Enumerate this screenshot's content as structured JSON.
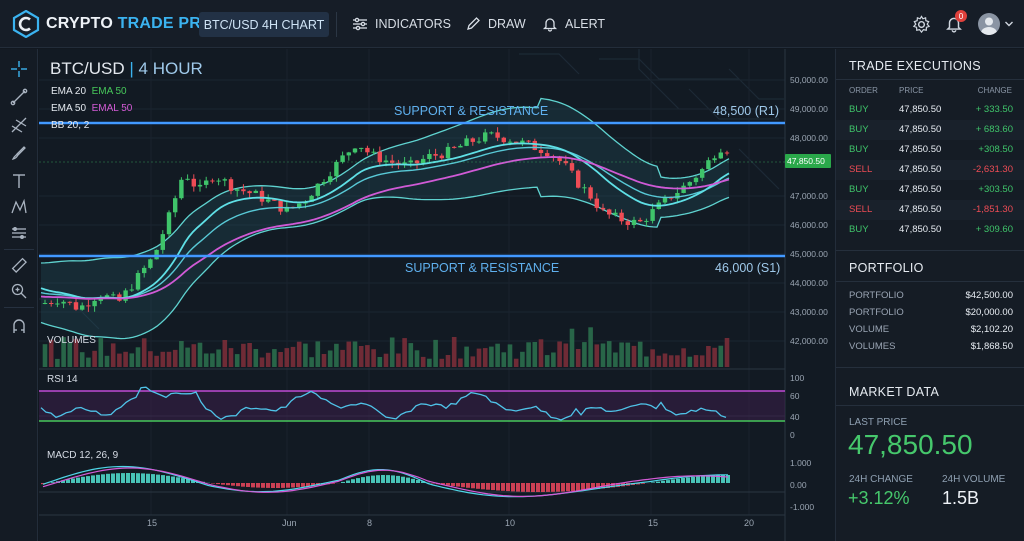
{
  "app": {
    "brand_part1": "CRYPTO",
    "brand_part2": "TRADE PRO",
    "chart_tab": "BTC/USD 4H CHART",
    "nav": {
      "indicators": "INDICATORS",
      "draw": "DRAW",
      "alert": "ALERT"
    },
    "notification_count": "0"
  },
  "chart": {
    "symbol": "BTC/USD",
    "timeframe": "4 HOUR",
    "legend": {
      "ema20_label": "EMA 20",
      "ema20_val": "EMA 50",
      "ema50_label": "EMA 50",
      "ema50_val": "EMAL 50",
      "bb_label": "BB 20, 2"
    },
    "overlay_ema": "EMAL 50",
    "support_resistance_top": "SUPPORT & RESISTANCE",
    "support_resistance_bottom": "SUPPORT & RESISTANCE",
    "r1_label": "48,500 (R1)",
    "s1_label": "46,000 (S1)",
    "current_price_tag": "47,850.50",
    "volumes_label": "VOLUMES",
    "rsi_label": "RSI 14",
    "macd_label": "MACD 12, 26, 9",
    "price_axis": [
      "50,000.00",
      "49,000.00",
      "48,000.00",
      "47,000.00",
      "46,000.00",
      "45,000.00",
      "44,000.00",
      "43,000.00",
      "42,000.00"
    ],
    "rsi_axis": [
      "100",
      "60",
      "40",
      "0"
    ],
    "macd_axis": [
      "1.000",
      "0.00",
      "-1.000"
    ],
    "x_axis": [
      "15",
      "Jun",
      "8",
      "10",
      "15",
      "20"
    ]
  },
  "chart_data": {
    "type": "candlestick",
    "series_price_range": [
      42000,
      50000
    ],
    "support": 46000,
    "resistance": 48500,
    "last_price": 47850.5,
    "rsi_levels": [
      60,
      40
    ],
    "rsi_range": [
      0,
      100
    ],
    "macd_range": [
      -1.0,
      1.0
    ]
  },
  "trades": {
    "title": "TRADE EXECUTIONS",
    "headers": [
      "ORDER",
      "PRICE",
      "CHANGE"
    ],
    "rows": [
      {
        "order": "BUY",
        "price": "47,850.50",
        "change": "+ 333.50"
      },
      {
        "order": "BUY",
        "price": "47,850.50",
        "change": "+ 683.60"
      },
      {
        "order": "BUY",
        "price": "47,850.50",
        "change": "+308.50"
      },
      {
        "order": "SELL",
        "price": "47,850.50",
        "change": "-2,631.30"
      },
      {
        "order": "BUY",
        "price": "47,850.50",
        "change": "+303.50"
      },
      {
        "order": "SELL",
        "price": "47,850.50",
        "change": "-1,851.30"
      },
      {
        "order": "BUY",
        "price": "47,850.50",
        "change": "+ 309.60"
      }
    ],
    "colors": {
      "buy": "#3fc46a",
      "sell": "#ee4c55"
    }
  },
  "portfolio": {
    "title": "PORTFOLIO",
    "rows": [
      {
        "k": "PORTFOLIO",
        "v": "$42,500.00"
      },
      {
        "k": "PORTFOLIO",
        "v": "$20,000.00"
      },
      {
        "k": "VOLUME",
        "v": "$2,102.20"
      },
      {
        "k": "VOLUMES",
        "v": "$1,868.50"
      }
    ]
  },
  "market": {
    "title": "MARKET DATA",
    "last_price_label": "LAST PRICE",
    "last_price": "47,850.50",
    "change_label": "24H CHANGE",
    "change_value": "+3.12%",
    "volume_label": "24H VOLUME",
    "volume_value": "1.5B"
  }
}
